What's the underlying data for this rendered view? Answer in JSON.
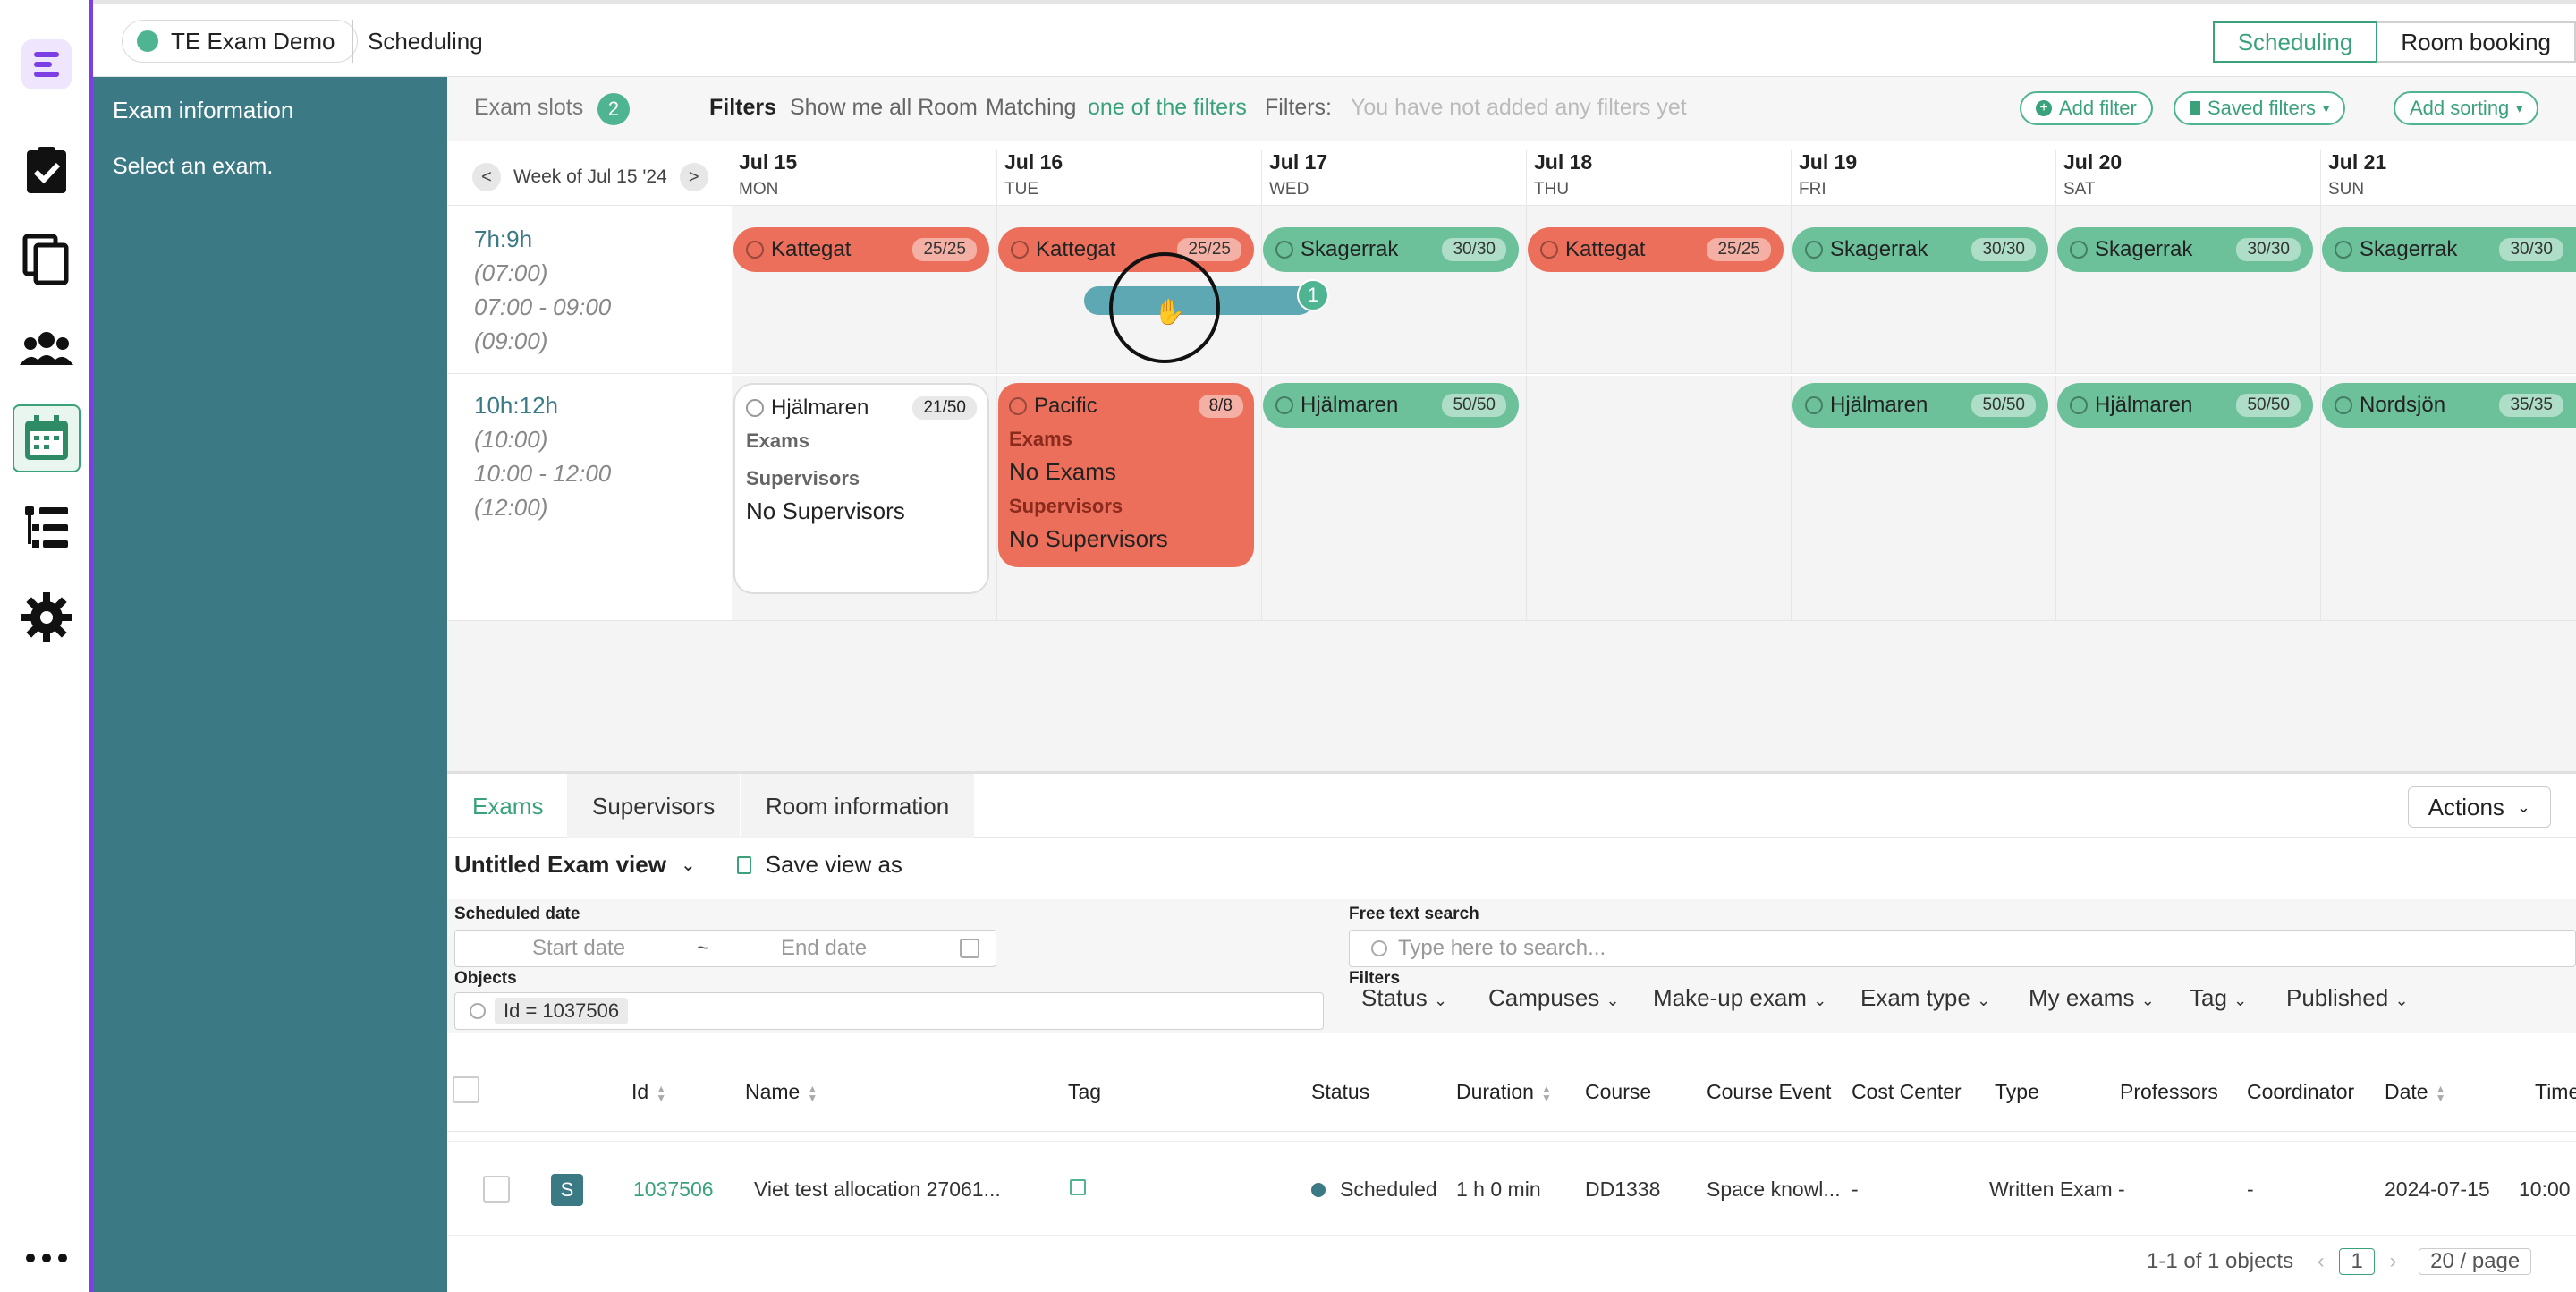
{
  "topbar": {
    "env": "TE Exam Demo",
    "crumb": "Scheduling",
    "modes": [
      "Scheduling",
      "Room booking"
    ]
  },
  "info_panel": {
    "title": "Exam information",
    "subtitle": "Select an exam."
  },
  "filterbar": {
    "exam_slots_label": "Exam slots",
    "exam_slots_count": "2",
    "filters_label": "Filters",
    "show_all": "Show me all Room",
    "matching": "Matching",
    "matching_mode": "one of the filters",
    "filters2": "Filters:",
    "empty": "You have not added any filters yet",
    "add_filter": "Add filter",
    "saved_filters": "Saved filters",
    "add_sorting": "Add sorting"
  },
  "week": {
    "prev": "<",
    "label": "Week of Jul 15 '24",
    "next": ">"
  },
  "days": [
    {
      "date": "Jul 15",
      "wd": "MON"
    },
    {
      "date": "Jul 16",
      "wd": "TUE"
    },
    {
      "date": "Jul 17",
      "wd": "WED"
    },
    {
      "date": "Jul 18",
      "wd": "THU"
    },
    {
      "date": "Jul 19",
      "wd": "FRI"
    },
    {
      "date": "Jul 20",
      "wd": "SAT"
    },
    {
      "date": "Jul 21",
      "wd": "SUN"
    }
  ],
  "slot1": {
    "head": "7h:9h",
    "l1": "(07:00)",
    "l2": "07:00 - 09:00",
    "l3": "(09:00)",
    "rooms": [
      {
        "name": "Kattegat",
        "count": "25/25"
      },
      {
        "name": "Kattegat",
        "count": "25/25"
      },
      {
        "name": "Skagerrak",
        "count": "30/30"
      },
      {
        "name": "Kattegat",
        "count": "25/25"
      },
      {
        "name": "Skagerrak",
        "count": "30/30"
      },
      {
        "name": "Skagerrak",
        "count": "30/30"
      },
      {
        "name": "Skagerrak",
        "count": "30/30"
      }
    ],
    "drag_count": "1"
  },
  "slot2": {
    "head": "10h:12h",
    "l1": "(10:00)",
    "l2": "10:00 - 12:00",
    "l3": "(12:00)",
    "card_a": {
      "name": "Hjälmaren",
      "count": "21/50",
      "exams": "Exams",
      "supervisors": "Supervisors",
      "no_sup": "No Supervisors"
    },
    "card_b": {
      "name": "Pacific",
      "count": "8/8",
      "exams": "Exams",
      "no_exams": "No Exams",
      "supervisors": "Supervisors",
      "no_sup": "No Supervisors"
    },
    "rooms": [
      {
        "name": "Hjälmaren",
        "count": "50/50"
      },
      {
        "name": "Hjälmaren",
        "count": "50/50"
      },
      {
        "name": "Hjälmaren",
        "count": "50/50"
      },
      {
        "name": "Nordsjön",
        "count": "35/35"
      }
    ]
  },
  "bottom": {
    "tabs": [
      "Exams",
      "Supervisors",
      "Room information"
    ],
    "actions": "Actions",
    "view_name": "Untitled Exam view",
    "save_view": "Save view as",
    "sched_label": "Scheduled date",
    "start_ph": "Start date",
    "tilde": "~",
    "end_ph": "End date",
    "free_label": "Free text search",
    "free_ph": "Type here to search...",
    "objects_label": "Objects",
    "objects_chip": "Id = 1037506",
    "filters_label": "Filters",
    "filter_dropdowns": [
      "Status",
      "Campuses",
      "Make-up exam",
      "Exam type",
      "My exams",
      "Tag",
      "Published"
    ]
  },
  "table": {
    "headers": [
      "Id",
      "Name",
      "Tag",
      "Status",
      "Duration",
      "Course",
      "Course Event",
      "Cost Center",
      "Type",
      "Professors",
      "Coordinator",
      "Date",
      "Time"
    ],
    "row": {
      "badge": "S",
      "id": "1037506",
      "name": "Viet test allocation 27061...",
      "status": "Scheduled",
      "duration": "1 h 0 min",
      "course": "DD1338",
      "course_event": "Space knowl...",
      "cost_center": "-",
      "type": "Written Exam",
      "professors": "-",
      "coordinator": "-",
      "date": "2024-07-15",
      "time": "10:00 -"
    },
    "pager": "1-1 of 1 objects",
    "page": "1",
    "page_size": "20 / page"
  },
  "colors": {
    "accent": "#3aa27b",
    "red": "#ec6f5c",
    "green": "#6cc19b",
    "panel": "#3b7a85",
    "rail_border": "#7b3fe4"
  }
}
